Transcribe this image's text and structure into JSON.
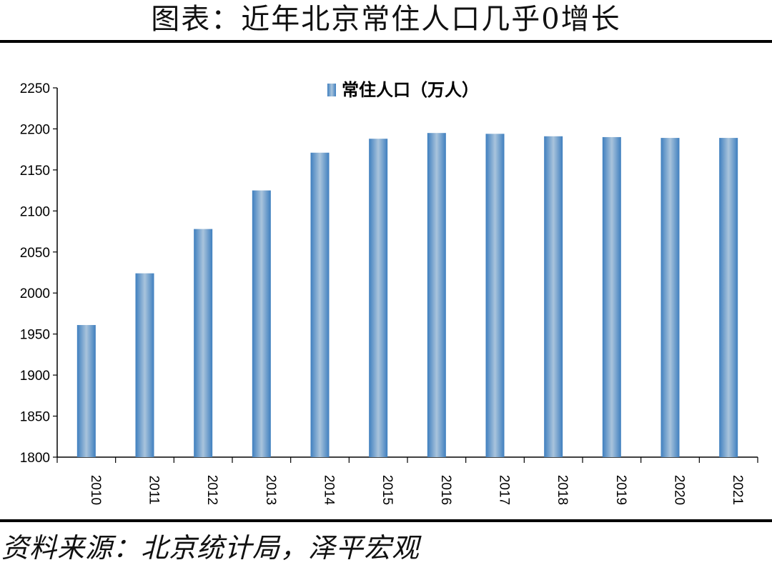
{
  "page": {
    "title": "图表：近年北京常住人口几乎0增长",
    "source": "资料来源：北京统计局，泽平宏观"
  },
  "chart_data": {
    "type": "bar",
    "title": "",
    "xlabel": "",
    "ylabel": "",
    "categories": [
      "2010",
      "2011",
      "2012",
      "2013",
      "2014",
      "2015",
      "2016",
      "2017",
      "2018",
      "2019",
      "2020",
      "2021"
    ],
    "series": [
      {
        "name": "常住人口（万人）",
        "values": [
          1961,
          2024,
          2078,
          2125,
          2171,
          2188,
          2195,
          2194,
          2191,
          2190,
          2189,
          2189
        ],
        "color": "#6a9ec9"
      }
    ],
    "ylim": [
      1800,
      2250
    ],
    "yticks": [
      "1800",
      "1850",
      "1900",
      "1950",
      "2000",
      "2050",
      "2100",
      "2150",
      "2200",
      "2250"
    ],
    "grid": false,
    "legend": "top-center",
    "x_tick_rotation": "vertical"
  }
}
